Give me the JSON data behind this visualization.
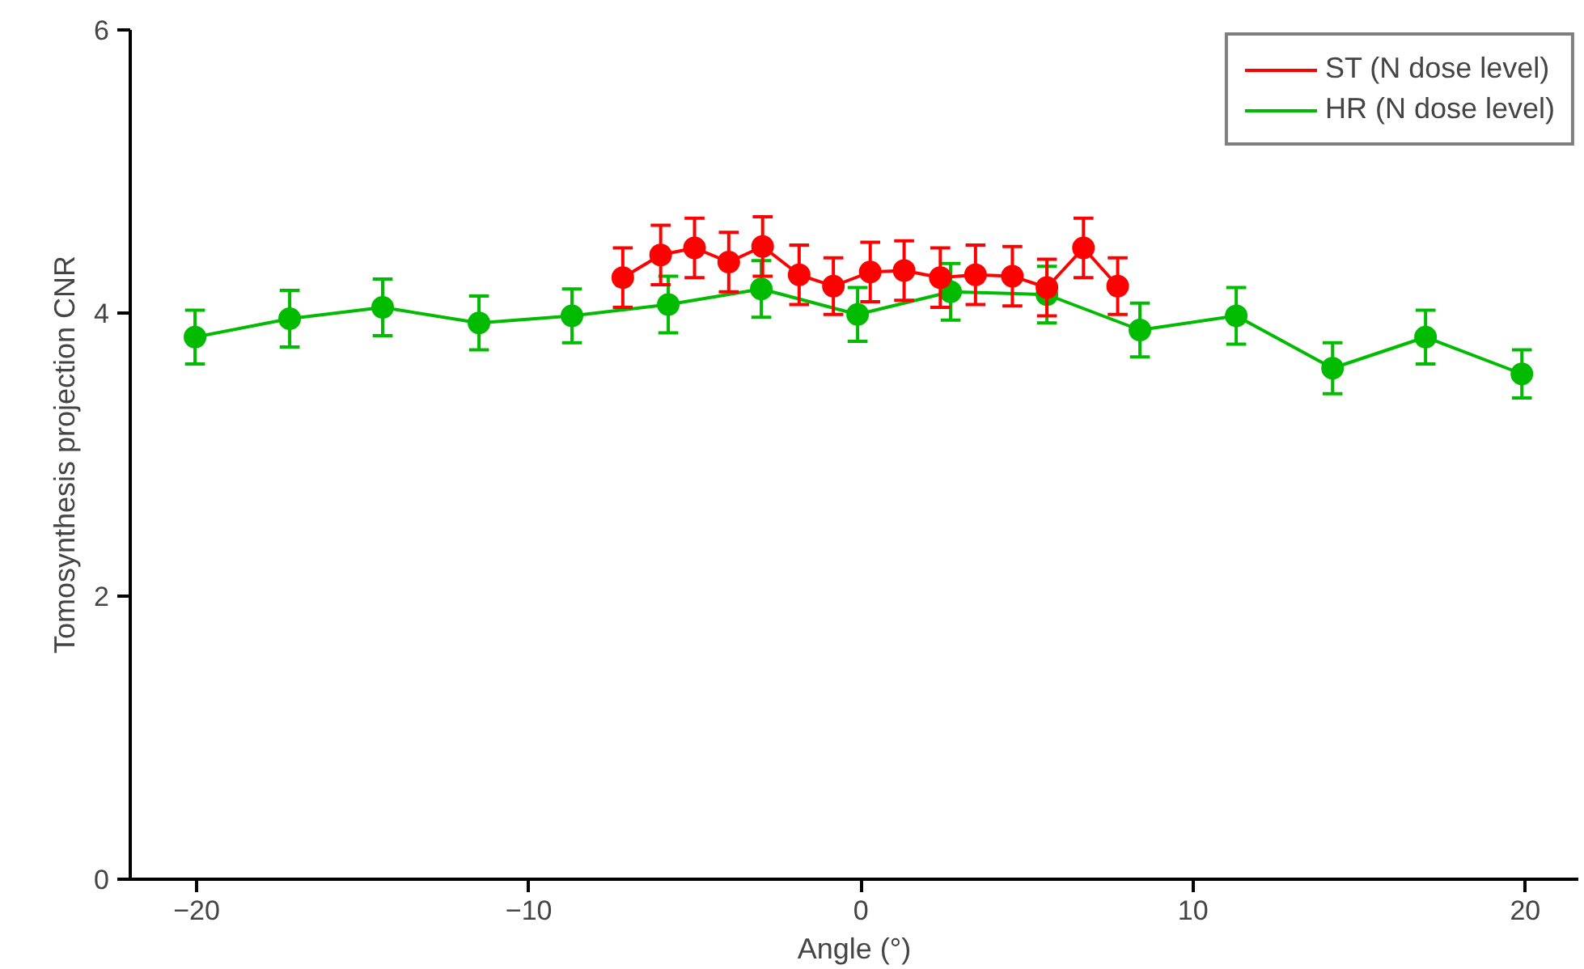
{
  "chart_data": {
    "type": "line",
    "xlabel": "Angle (°)",
    "ylabel": "Tomosynthesis projection CNR",
    "xlim": [
      -22,
      21.6
    ],
    "ylim": [
      0,
      6
    ],
    "xticks": [
      -20,
      -10,
      0,
      10,
      20
    ],
    "yticks": [
      0,
      2,
      4,
      6
    ],
    "grid": false,
    "legend": "top right",
    "marker": "circle",
    "line_style": "solid",
    "series": [
      {
        "name": "ST (N dose level)",
        "color": "#ff0000",
        "x": [
          -7.17,
          -6.03,
          -5.01,
          -3.98,
          -2.96,
          -1.86,
          -0.83,
          0.28,
          1.3,
          2.39,
          3.45,
          4.56,
          5.6,
          6.7,
          7.73
        ],
        "values": [
          4.25,
          4.41,
          4.46,
          4.36,
          4.47,
          4.27,
          4.19,
          4.29,
          4.3,
          4.25,
          4.27,
          4.26,
          4.18,
          4.46,
          4.19
        ],
        "errors": [
          0.21,
          0.21,
          0.21,
          0.21,
          0.21,
          0.21,
          0.2,
          0.21,
          0.21,
          0.21,
          0.21,
          0.21,
          0.2,
          0.21,
          0.2
        ]
      },
      {
        "name": "HR (N dose level)",
        "color": "#00bb00",
        "x": [
          -20.05,
          -17.2,
          -14.4,
          -11.5,
          -8.7,
          -5.8,
          -3.0,
          -0.1,
          2.7,
          5.6,
          8.4,
          11.3,
          14.2,
          17.0,
          19.9
        ],
        "values": [
          3.83,
          3.96,
          4.04,
          3.93,
          3.98,
          4.06,
          4.17,
          3.99,
          4.15,
          4.13,
          3.88,
          3.98,
          3.61,
          3.83,
          3.57
        ],
        "errors": [
          0.19,
          0.2,
          0.2,
          0.19,
          0.19,
          0.2,
          0.2,
          0.19,
          0.2,
          0.2,
          0.19,
          0.2,
          0.18,
          0.19,
          0.17
        ]
      }
    ]
  }
}
